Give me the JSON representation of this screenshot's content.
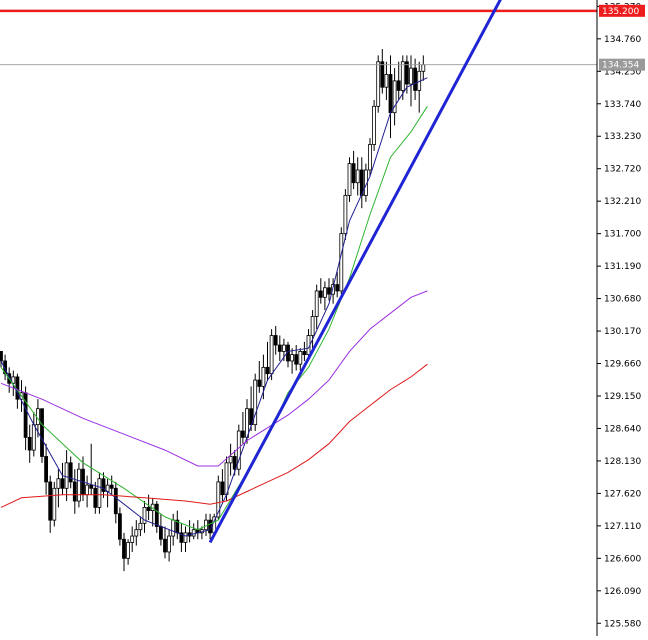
{
  "chart_data": {
    "type": "candlestick",
    "ylim": [
      125.38,
      135.37
    ],
    "y_ticks": [
      "135.270",
      "134.760",
      "134.250",
      "133.740",
      "133.230",
      "132.720",
      "132.210",
      "131.700",
      "131.190",
      "130.680",
      "130.170",
      "129.660",
      "129.150",
      "128.640",
      "128.130",
      "127.620",
      "127.110",
      "126.600",
      "126.090",
      "125.580"
    ],
    "y_tick_values": [
      135.27,
      134.76,
      134.25,
      133.74,
      133.23,
      132.72,
      132.21,
      131.7,
      131.19,
      130.68,
      130.17,
      129.66,
      129.15,
      128.64,
      128.13,
      127.62,
      127.11,
      126.6,
      126.09,
      125.58
    ],
    "horizontal_line": {
      "label": "135.200",
      "value": 135.2,
      "color": "#ee1c1c"
    },
    "current_price": {
      "label": "134.354",
      "value": 134.354,
      "color": "#888888"
    },
    "trendline": {
      "start": {
        "bar": 51,
        "price": 126.85
      },
      "end": {
        "bar": 122,
        "price": 135.4
      },
      "color": "#1f24d4"
    },
    "ohlc": [
      [
        129.85,
        129.85,
        129.6,
        129.7
      ],
      [
        129.7,
        129.8,
        129.4,
        129.5
      ],
      [
        129.5,
        129.6,
        129.2,
        129.35
      ],
      [
        129.35,
        129.55,
        129.15,
        129.45
      ],
      [
        129.45,
        129.5,
        128.95,
        129.1
      ],
      [
        129.1,
        129.4,
        128.9,
        129.2
      ],
      [
        129.2,
        129.3,
        128.3,
        128.5
      ],
      [
        128.5,
        128.7,
        128.1,
        128.3
      ],
      [
        128.3,
        128.9,
        128.2,
        128.7
      ],
      [
        128.7,
        129.1,
        128.5,
        128.95
      ],
      [
        128.95,
        128.95,
        128.1,
        128.2
      ],
      [
        128.2,
        128.4,
        127.6,
        127.8
      ],
      [
        127.8,
        127.9,
        127.0,
        127.2
      ],
      [
        127.2,
        127.8,
        127.1,
        127.7
      ],
      [
        127.7,
        128.0,
        127.4,
        127.85
      ],
      [
        127.85,
        128.1,
        127.6,
        127.7
      ],
      [
        127.7,
        128.3,
        127.5,
        128.1
      ],
      [
        128.1,
        128.2,
        127.7,
        127.8
      ],
      [
        127.8,
        128.0,
        127.3,
        127.5
      ],
      [
        127.5,
        128.1,
        127.4,
        128.0
      ],
      [
        128.0,
        128.2,
        127.5,
        127.6
      ],
      [
        127.6,
        127.9,
        127.4,
        127.75
      ],
      [
        127.75,
        128.4,
        127.6,
        127.7
      ],
      [
        127.7,
        127.8,
        127.3,
        127.4
      ],
      [
        127.4,
        127.95,
        127.3,
        127.85
      ],
      [
        127.85,
        127.95,
        127.55,
        127.65
      ],
      [
        127.65,
        127.85,
        127.4,
        127.75
      ],
      [
        127.75,
        127.9,
        127.6,
        127.7
      ],
      [
        127.7,
        127.8,
        127.15,
        127.3
      ],
      [
        127.3,
        127.4,
        126.8,
        126.9
      ],
      [
        126.9,
        127.0,
        126.4,
        126.6
      ],
      [
        126.6,
        126.9,
        126.5,
        126.85
      ],
      [
        126.85,
        127.1,
        126.7,
        126.95
      ],
      [
        126.95,
        127.2,
        126.8,
        127.05
      ],
      [
        127.05,
        127.25,
        126.95,
        127.15
      ],
      [
        127.15,
        127.5,
        127.0,
        127.4
      ],
      [
        127.4,
        127.6,
        127.2,
        127.35
      ],
      [
        127.35,
        127.55,
        127.1,
        127.45
      ],
      [
        127.45,
        127.5,
        127.0,
        127.1
      ],
      [
        127.1,
        127.3,
        126.8,
        126.9
      ],
      [
        126.9,
        127.1,
        126.6,
        126.7
      ],
      [
        126.7,
        127.05,
        126.55,
        126.95
      ],
      [
        126.95,
        127.3,
        126.8,
        127.2
      ],
      [
        127.2,
        127.35,
        126.9,
        127.0
      ],
      [
        127.0,
        127.15,
        126.7,
        126.85
      ],
      [
        126.85,
        127.1,
        126.7,
        127.0
      ],
      [
        127.0,
        127.2,
        126.85,
        126.95
      ],
      [
        126.95,
        127.15,
        126.9,
        127.05
      ],
      [
        127.05,
        127.2,
        126.9,
        127.0
      ],
      [
        127.0,
        127.1,
        126.9,
        127.05
      ],
      [
        127.05,
        127.3,
        126.95,
        127.2
      ],
      [
        127.2,
        127.3,
        126.9,
        127.0
      ],
      [
        127.0,
        127.3,
        126.95,
        127.25
      ],
      [
        127.25,
        127.9,
        127.2,
        127.8
      ],
      [
        127.8,
        128.0,
        127.5,
        127.6
      ],
      [
        127.6,
        128.2,
        127.5,
        128.1
      ],
      [
        128.1,
        128.4,
        127.9,
        128.2
      ],
      [
        128.2,
        128.3,
        127.9,
        128.0
      ],
      [
        128.0,
        128.7,
        127.9,
        128.6
      ],
      [
        128.6,
        128.9,
        128.4,
        128.5
      ],
      [
        128.5,
        129.1,
        128.4,
        128.95
      ],
      [
        128.95,
        129.3,
        128.6,
        128.7
      ],
      [
        128.7,
        129.5,
        128.6,
        129.4
      ],
      [
        129.4,
        129.7,
        129.2,
        129.3
      ],
      [
        129.3,
        129.8,
        129.1,
        129.6
      ],
      [
        129.6,
        130.0,
        129.4,
        129.5
      ],
      [
        129.5,
        130.2,
        129.4,
        130.1
      ],
      [
        130.1,
        130.25,
        129.8,
        129.95
      ],
      [
        129.95,
        130.1,
        129.7,
        129.85
      ],
      [
        129.85,
        130.05,
        129.7,
        129.95
      ],
      [
        129.95,
        130.0,
        129.6,
        129.7
      ],
      [
        129.7,
        129.9,
        129.5,
        129.8
      ],
      [
        129.8,
        129.95,
        129.55,
        129.65
      ],
      [
        129.65,
        129.9,
        129.55,
        129.85
      ],
      [
        129.85,
        130.0,
        129.7,
        129.8
      ],
      [
        129.8,
        130.2,
        129.7,
        130.1
      ],
      [
        130.1,
        130.5,
        129.9,
        130.4
      ],
      [
        130.4,
        130.9,
        130.2,
        130.8
      ],
      [
        130.8,
        131.0,
        130.6,
        130.7
      ],
      [
        130.7,
        130.95,
        130.5,
        130.85
      ],
      [
        130.85,
        131.0,
        130.65,
        130.75
      ],
      [
        130.75,
        131.0,
        130.6,
        130.9
      ],
      [
        130.9,
        131.1,
        130.7,
        130.8
      ],
      [
        130.8,
        131.8,
        130.75,
        131.7
      ],
      [
        131.7,
        132.4,
        131.6,
        132.3
      ],
      [
        132.3,
        132.9,
        132.2,
        132.8
      ],
      [
        132.8,
        133.0,
        132.4,
        132.5
      ],
      [
        132.5,
        132.9,
        132.3,
        132.7
      ],
      [
        132.7,
        132.9,
        132.1,
        132.3
      ],
      [
        132.3,
        132.8,
        132.2,
        132.7
      ],
      [
        132.7,
        133.2,
        132.6,
        133.1
      ],
      [
        133.1,
        133.8,
        133.0,
        133.7
      ],
      [
        133.7,
        134.5,
        133.6,
        134.4
      ],
      [
        134.4,
        134.6,
        133.9,
        134.0
      ],
      [
        134.0,
        134.4,
        133.8,
        134.2
      ],
      [
        134.2,
        134.5,
        133.2,
        133.6
      ],
      [
        133.6,
        134.3,
        133.4,
        134.1
      ],
      [
        134.1,
        134.4,
        133.8,
        133.95
      ],
      [
        133.95,
        134.5,
        133.8,
        134.4
      ],
      [
        134.4,
        134.5,
        133.9,
        134.05
      ],
      [
        134.05,
        134.5,
        133.7,
        134.3
      ],
      [
        134.3,
        134.45,
        133.8,
        133.95
      ],
      [
        133.95,
        134.4,
        133.6,
        134.25
      ],
      [
        134.25,
        134.5,
        134.1,
        134.354
      ]
    ],
    "moving_averages": [
      {
        "color": "#1f1f8f",
        "points": [
          [
            0,
            129.7
          ],
          [
            8,
            128.7
          ],
          [
            15,
            127.9
          ],
          [
            25,
            127.7
          ],
          [
            35,
            127.2
          ],
          [
            45,
            126.95
          ],
          [
            51,
            127.05
          ],
          [
            55,
            127.6
          ],
          [
            60,
            128.5
          ],
          [
            65,
            129.4
          ],
          [
            70,
            129.85
          ],
          [
            75,
            129.9
          ],
          [
            80,
            130.6
          ],
          [
            85,
            131.9
          ],
          [
            90,
            132.6
          ],
          [
            95,
            133.6
          ],
          [
            99,
            134.0
          ],
          [
            104,
            134.15
          ]
        ]
      },
      {
        "color": "#2fb52f",
        "points": [
          [
            0,
            129.6
          ],
          [
            10,
            128.7
          ],
          [
            20,
            128.1
          ],
          [
            30,
            127.7
          ],
          [
            40,
            127.25
          ],
          [
            48,
            127.05
          ],
          [
            53,
            127.2
          ],
          [
            60,
            127.95
          ],
          [
            65,
            128.5
          ],
          [
            70,
            129.2
          ],
          [
            75,
            129.6
          ],
          [
            80,
            130.2
          ],
          [
            85,
            131.0
          ],
          [
            90,
            132.0
          ],
          [
            95,
            132.9
          ],
          [
            100,
            133.3
          ],
          [
            104,
            133.7
          ]
        ]
      },
      {
        "color": "#9b30e0",
        "points": [
          [
            0,
            129.35
          ],
          [
            10,
            129.1
          ],
          [
            20,
            128.8
          ],
          [
            30,
            128.55
          ],
          [
            40,
            128.3
          ],
          [
            48,
            128.05
          ],
          [
            53,
            128.05
          ],
          [
            60,
            128.45
          ],
          [
            65,
            128.65
          ],
          [
            70,
            128.85
          ],
          [
            75,
            129.1
          ],
          [
            80,
            129.4
          ],
          [
            85,
            129.85
          ],
          [
            90,
            130.2
          ],
          [
            95,
            130.45
          ],
          [
            100,
            130.7
          ],
          [
            104,
            130.8
          ]
        ]
      },
      {
        "color": "#e01a1a",
        "points": [
          [
            0,
            127.4
          ],
          [
            5,
            127.55
          ],
          [
            15,
            127.6
          ],
          [
            25,
            127.6
          ],
          [
            35,
            127.55
          ],
          [
            45,
            127.5
          ],
          [
            51,
            127.45
          ],
          [
            55,
            127.5
          ],
          [
            60,
            127.65
          ],
          [
            65,
            127.8
          ],
          [
            70,
            127.95
          ],
          [
            75,
            128.15
          ],
          [
            80,
            128.4
          ],
          [
            85,
            128.75
          ],
          [
            90,
            129.0
          ],
          [
            95,
            129.25
          ],
          [
            100,
            129.45
          ],
          [
            104,
            129.65
          ]
        ]
      }
    ]
  }
}
